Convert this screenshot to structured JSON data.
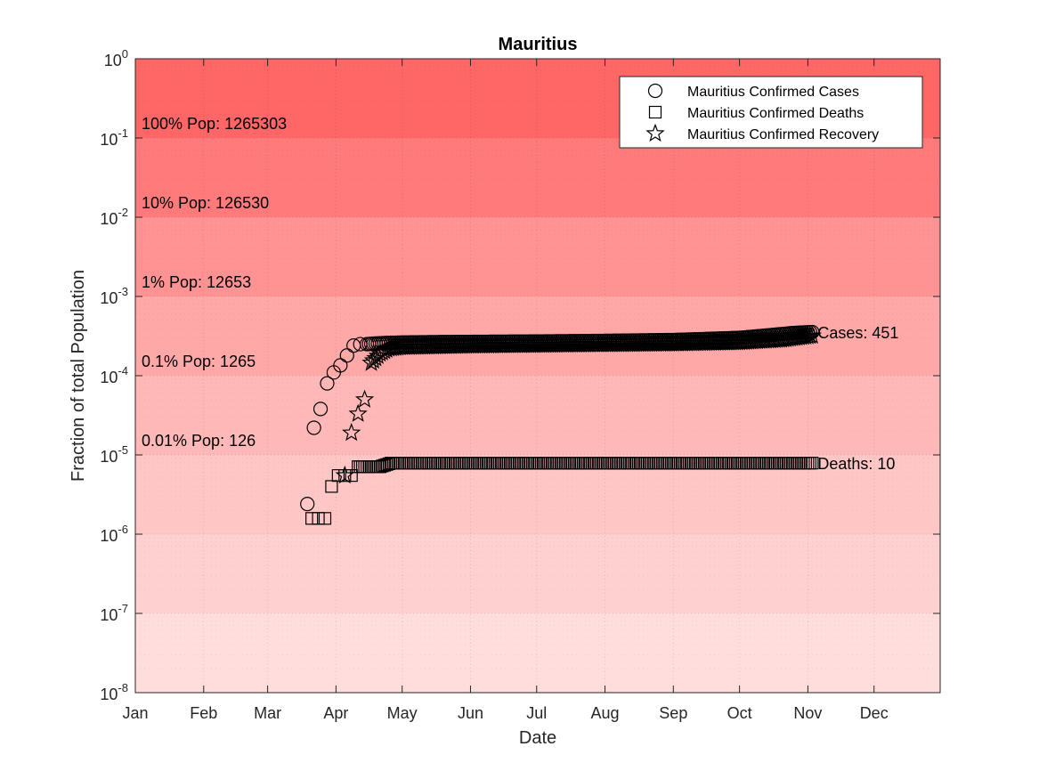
{
  "chart_data": {
    "type": "scatter",
    "title": "Mauritius",
    "xlabel": "Date",
    "ylabel": "Fraction of total Population",
    "y_scale": "log",
    "ylim": [
      1e-08,
      1
    ],
    "xlim": [
      "2020-01-01",
      "2020-12-31"
    ],
    "grid": true,
    "legend_position": "top-right",
    "x_ticks": [
      "Jan",
      "Feb",
      "Mar",
      "Apr",
      "May",
      "Jun",
      "Jul",
      "Aug",
      "Sep",
      "Oct",
      "Nov",
      "Dec"
    ],
    "y_ticks": [
      {
        "base": "10",
        "exp": "0"
      },
      {
        "base": "10",
        "exp": "-1"
      },
      {
        "base": "10",
        "exp": "-2"
      },
      {
        "base": "10",
        "exp": "-3"
      },
      {
        "base": "10",
        "exp": "-4"
      },
      {
        "base": "10",
        "exp": "-5"
      },
      {
        "base": "10",
        "exp": "-6"
      },
      {
        "base": "10",
        "exp": "-7"
      },
      {
        "base": "10",
        "exp": "-8"
      }
    ],
    "population_bands": [
      {
        "label": "100% Pop: 1265303",
        "top": 1,
        "bottom": 0.1,
        "color": "#ff6666"
      },
      {
        "label": "10% Pop: 126530",
        "top": 0.1,
        "bottom": 0.01,
        "color": "#ff7b7b"
      },
      {
        "label": "1% Pop: 12653",
        "top": 0.01,
        "bottom": 0.001,
        "color": "#ff9393"
      },
      {
        "label": "0.1% Pop: 1265",
        "top": 0.001,
        "bottom": 0.0001,
        "color": "#ffa8a8"
      },
      {
        "label": "0.01% Pop: 126",
        "top": 0.0001,
        "bottom": 1e-05,
        "color": "#ffb8b8"
      },
      {
        "label": "",
        "top": 1e-05,
        "bottom": 1e-06,
        "color": "#ffc6c6"
      },
      {
        "label": "",
        "top": 1e-06,
        "bottom": 1e-07,
        "color": "#ffd0d0"
      },
      {
        "label": "",
        "top": 1e-07,
        "bottom": 1e-08,
        "color": "#ffdddd"
      }
    ],
    "series": [
      {
        "name": "Mauritius Confirmed Cases",
        "marker": "circle",
        "end_label": "Cases: 451",
        "points": [
          {
            "x": "2020-03-19",
            "y": 2.4e-06
          },
          {
            "x": "2020-03-22",
            "y": 2.2e-05
          },
          {
            "x": "2020-03-25",
            "y": 3.8e-05
          },
          {
            "x": "2020-03-28",
            "y": 8e-05
          },
          {
            "x": "2020-03-31",
            "y": 0.00011
          },
          {
            "x": "2020-04-03",
            "y": 0.000135
          },
          {
            "x": "2020-04-06",
            "y": 0.00018
          },
          {
            "x": "2020-04-09",
            "y": 0.00024
          },
          {
            "x": "2020-04-12",
            "y": 0.00025
          },
          {
            "x": "2020-04-15",
            "y": 0.00025
          },
          {
            "x": "2020-04-19",
            "y": 0.000255
          },
          {
            "x": "2020-04-25",
            "y": 0.00026
          },
          {
            "x": "2020-05-01",
            "y": 0.000262
          },
          {
            "x": "2020-05-15",
            "y": 0.000265
          },
          {
            "x": "2020-06-01",
            "y": 0.000267
          },
          {
            "x": "2020-07-01",
            "y": 0.00027
          },
          {
            "x": "2020-08-01",
            "y": 0.000275
          },
          {
            "x": "2020-09-01",
            "y": 0.000282
          },
          {
            "x": "2020-09-15",
            "y": 0.00029
          },
          {
            "x": "2020-10-01",
            "y": 0.0003
          },
          {
            "x": "2020-10-15",
            "y": 0.000325
          },
          {
            "x": "2020-10-25",
            "y": 0.000345
          },
          {
            "x": "2020-11-03",
            "y": 0.000356
          }
        ]
      },
      {
        "name": "Mauritius Confirmed Deaths",
        "marker": "square",
        "end_label": "Deaths: 10",
        "points": [
          {
            "x": "2020-03-21",
            "y": 1.58e-06
          },
          {
            "x": "2020-03-24",
            "y": 1.58e-06
          },
          {
            "x": "2020-03-27",
            "y": 1.58e-06
          },
          {
            "x": "2020-03-30",
            "y": 4e-06
          },
          {
            "x": "2020-04-02",
            "y": 5.5e-06
          },
          {
            "x": "2020-04-05",
            "y": 5.5e-06
          },
          {
            "x": "2020-04-08",
            "y": 5.5e-06
          },
          {
            "x": "2020-04-11",
            "y": 7.1e-06
          },
          {
            "x": "2020-04-15",
            "y": 7.1e-06
          },
          {
            "x": "2020-04-21",
            "y": 7.1e-06
          },
          {
            "x": "2020-04-26",
            "y": 7.9e-06
          },
          {
            "x": "2020-05-10",
            "y": 7.9e-06
          },
          {
            "x": "2020-06-01",
            "y": 7.9e-06
          },
          {
            "x": "2020-07-01",
            "y": 7.9e-06
          },
          {
            "x": "2020-08-01",
            "y": 7.9e-06
          },
          {
            "x": "2020-09-01",
            "y": 7.9e-06
          },
          {
            "x": "2020-10-01",
            "y": 7.9e-06
          },
          {
            "x": "2020-11-03",
            "y": 7.9e-06
          }
        ]
      },
      {
        "name": "Mauritius Confirmed Recovery",
        "marker": "star",
        "end_label": "",
        "points": [
          {
            "x": "2020-04-05",
            "y": 5.5e-06
          },
          {
            "x": "2020-04-08",
            "y": 1.9e-05
          },
          {
            "x": "2020-04-11",
            "y": 3.3e-05
          },
          {
            "x": "2020-04-14",
            "y": 5e-05
          },
          {
            "x": "2020-04-17",
            "y": 0.000145
          },
          {
            "x": "2020-04-21",
            "y": 0.00019
          },
          {
            "x": "2020-04-25",
            "y": 0.00022
          },
          {
            "x": "2020-05-01",
            "y": 0.00023
          },
          {
            "x": "2020-06-01",
            "y": 0.00024
          },
          {
            "x": "2020-07-01",
            "y": 0.000245
          },
          {
            "x": "2020-08-01",
            "y": 0.00025
          },
          {
            "x": "2020-09-01",
            "y": 0.000255
          },
          {
            "x": "2020-10-01",
            "y": 0.000265
          },
          {
            "x": "2020-10-20",
            "y": 0.000285
          },
          {
            "x": "2020-11-03",
            "y": 0.00032
          }
        ]
      }
    ]
  }
}
